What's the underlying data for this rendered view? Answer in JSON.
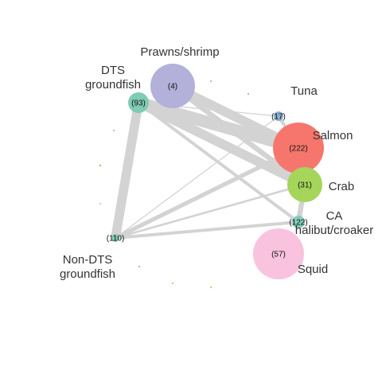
{
  "nodes": [
    {
      "id": "prawns",
      "label": "Prawns/shrimp",
      "count": "(4)",
      "color": "#b3b0d9"
    },
    {
      "id": "dts",
      "label": "DTS\ngroundfish",
      "count": "(93)",
      "color": "#7fcbb4"
    },
    {
      "id": "tuna",
      "label": "Tuna",
      "count": "(17)",
      "color": "#8aaed0"
    },
    {
      "id": "salmon",
      "label": "Salmon",
      "count": "(222)",
      "color": "#f6766d"
    },
    {
      "id": "crab",
      "label": "Crab",
      "count": "(31)",
      "color": "#a5d55a"
    },
    {
      "id": "cahal",
      "label": "CA\nhalibut/croaker",
      "count": "(122)",
      "color": "#82cdb8"
    },
    {
      "id": "nondts",
      "label": "Non-DTS\ngroundfish",
      "count": "(110)",
      "color": "#82cdb8"
    },
    {
      "id": "squid",
      "label": "Squid",
      "count": "(57)",
      "color": "#f9c3df"
    }
  ],
  "edges": [
    {
      "from": "dts",
      "to": "nondts",
      "weight": 9
    },
    {
      "from": "dts",
      "to": "salmon",
      "weight": 12
    },
    {
      "from": "dts",
      "to": "crab",
      "weight": 9
    },
    {
      "from": "prawns",
      "to": "salmon",
      "weight": 9
    },
    {
      "from": "prawns",
      "to": "crab",
      "weight": 5
    },
    {
      "from": "dts",
      "to": "cahal",
      "weight": 3
    },
    {
      "from": "dts",
      "to": "tuna",
      "weight": 1
    },
    {
      "from": "salmon",
      "to": "crab",
      "weight": 7
    },
    {
      "from": "tuna",
      "to": "salmon",
      "weight": 3
    },
    {
      "from": "crab",
      "to": "cahal",
      "weight": 5
    },
    {
      "from": "nondts",
      "to": "salmon",
      "weight": 4
    },
    {
      "from": "nondts",
      "to": "crab",
      "weight": 2
    },
    {
      "from": "nondts",
      "to": "cahal",
      "weight": 3
    },
    {
      "from": "nondts",
      "to": "tuna",
      "weight": 1
    }
  ],
  "edge_color": "#d3d3d3"
}
